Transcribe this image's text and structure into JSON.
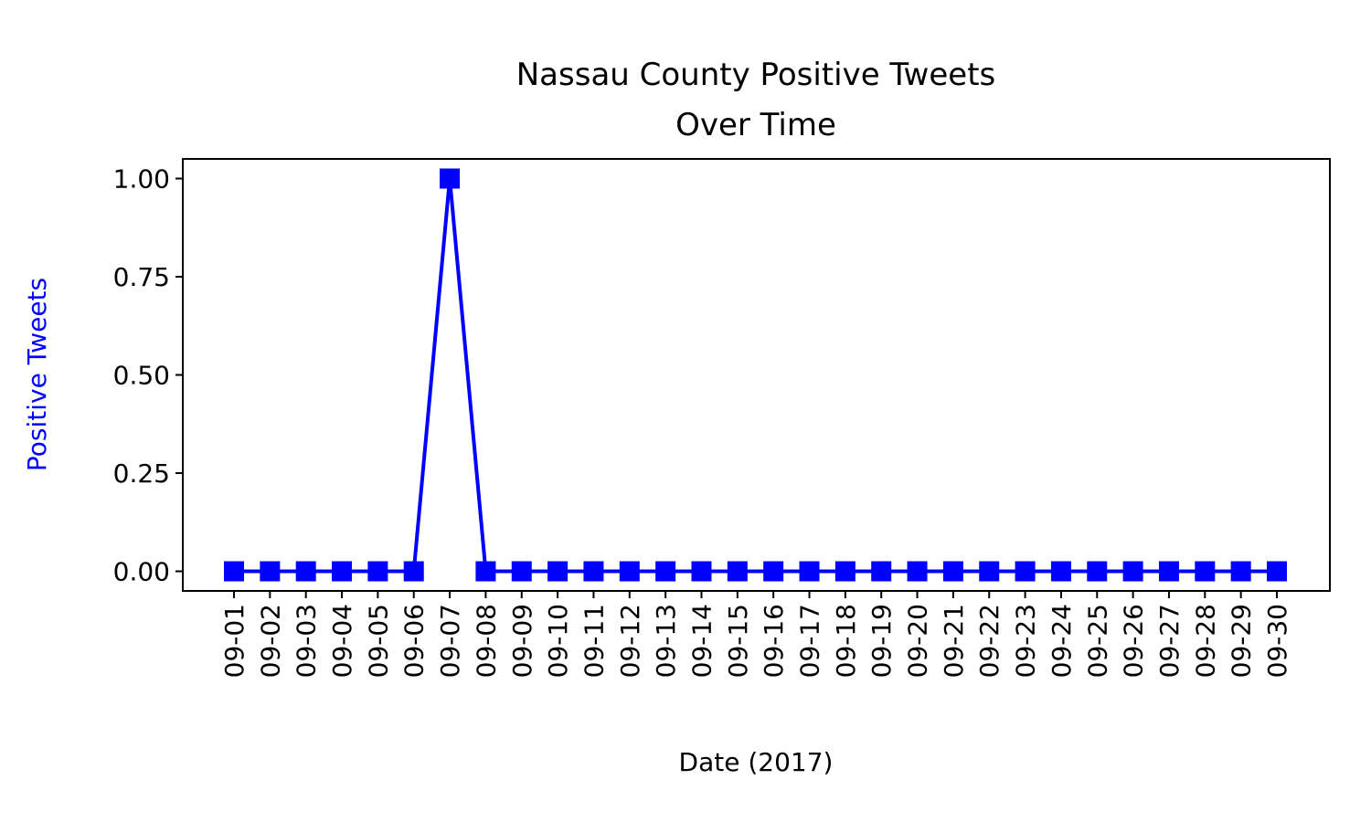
{
  "chart_data": {
    "type": "line",
    "title_line1": "Nassau County Positive Tweets",
    "title_line2": "Over Time",
    "xlabel": "Date (2017)",
    "ylabel": "Positive Tweets",
    "x": [
      "09-01",
      "09-02",
      "09-03",
      "09-04",
      "09-05",
      "09-06",
      "09-07",
      "09-08",
      "09-09",
      "09-10",
      "09-11",
      "09-12",
      "09-13",
      "09-14",
      "09-15",
      "09-16",
      "09-17",
      "09-18",
      "09-19",
      "09-20",
      "09-21",
      "09-22",
      "09-23",
      "09-24",
      "09-25",
      "09-26",
      "09-27",
      "09-28",
      "09-29",
      "09-30"
    ],
    "series": [
      {
        "values": [
          0,
          0,
          0,
          0,
          0,
          0,
          1,
          0,
          0,
          0,
          0,
          0,
          0,
          0,
          0,
          0,
          0,
          0,
          0,
          0,
          0,
          0,
          0,
          0,
          0,
          0,
          0,
          0,
          0,
          0
        ],
        "color": "#0000ff",
        "marker": "square"
      }
    ],
    "yticks": [
      "0.00",
      "0.25",
      "0.50",
      "0.75",
      "1.00"
    ],
    "ylim": [
      -0.05,
      1.05
    ],
    "ylabel_color": "#0000ff",
    "grid": false
  }
}
